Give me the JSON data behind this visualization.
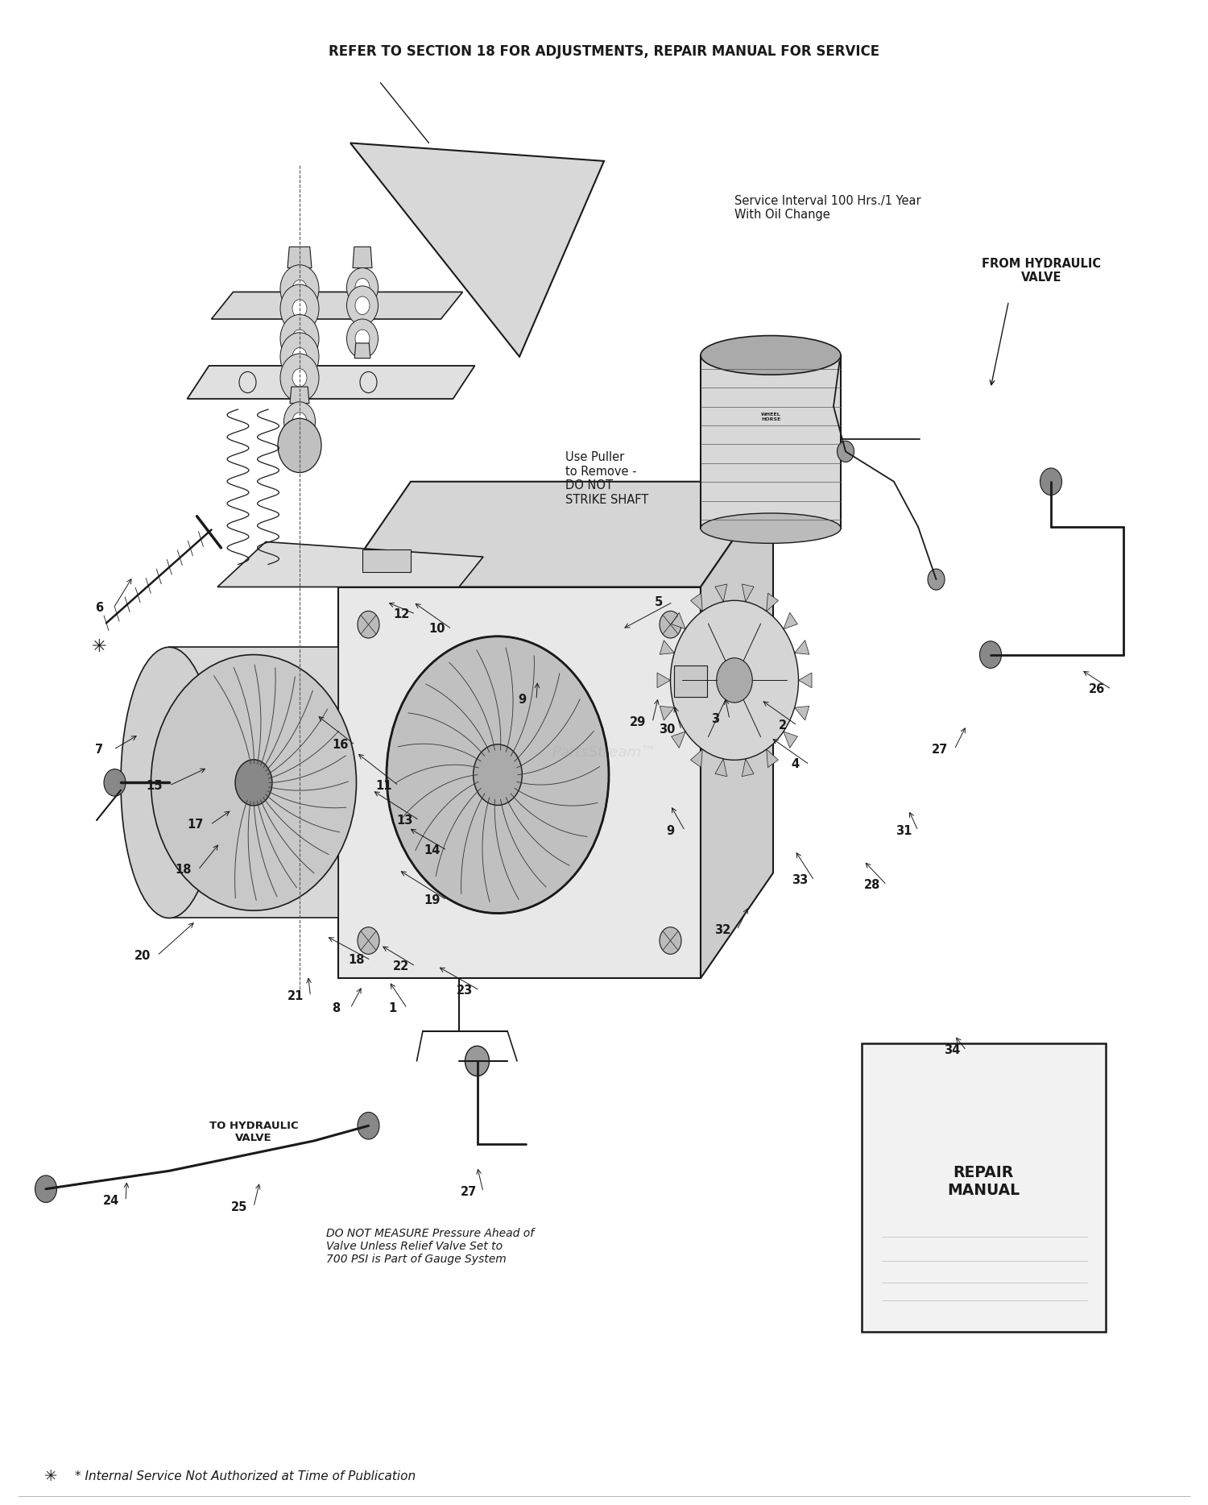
{
  "title": "REFER TO SECTION 18 FOR ADJUSTMENTS, REPAIR MANUAL FOR SERVICE",
  "footer": "* Internal Service Not Authorized at Time of Publication",
  "service_interval_text": "Service Interval 100 Hrs./1 Year\nWith Oil Change",
  "from_hydraulic_valve": "FROM HYDRAULIC\nVALVE",
  "to_hydraulic_valve": "TO HYDRAULIC\nVALVE",
  "use_puller_text": "Use Puller\nto Remove -\nDO NOT\nSTRIKE SHAFT",
  "do_not_measure_text": "DO NOT MEASURE Pressure Ahead of\nValve Unless Relief Valve Set to\n700 PSI is Part of Gauge System",
  "repair_manual_text": "REPAIR\nMANUAL",
  "background_color": "#ffffff",
  "line_color": "#1a1a1a",
  "text_color": "#1a1a1a",
  "watermark": "PartsStream™"
}
